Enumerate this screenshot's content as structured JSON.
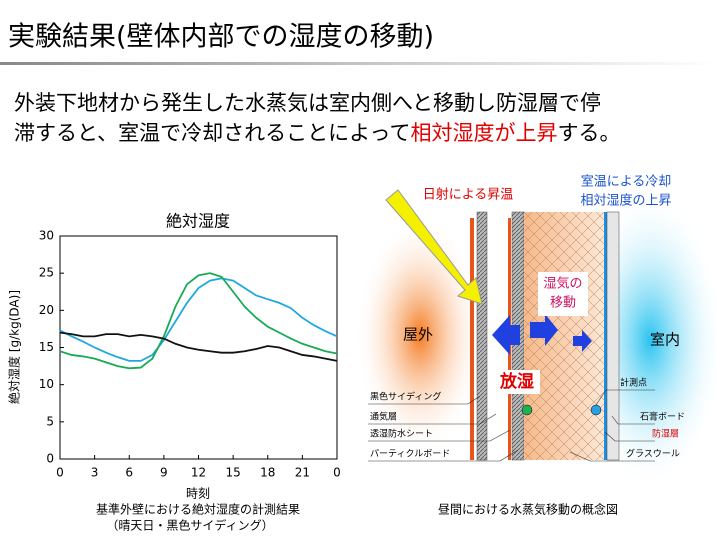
{
  "header": {
    "title": "実験結果(壁体内部での湿度の移動)"
  },
  "lead": {
    "text_1": "外装下地材から発生した水蒸気は室内側へと移動し防湿層で停",
    "text_2": "滞すると、室温で冷却されることによって",
    "highlight": "相対湿度が上昇",
    "text_3": "する。"
  },
  "chart_data": {
    "type": "line",
    "title": "絶対湿度",
    "y_label": "絶対湿度 [g/kg(DA)]",
    "x_label": "時刻",
    "caption": [
      "基準外壁における絶対湿度の計測結果",
      "（晴天日・黒色サイディング）"
    ],
    "x": [
      0,
      1,
      2,
      3,
      4,
      5,
      6,
      7,
      8,
      9,
      10,
      11,
      12,
      13,
      14,
      15,
      16,
      17,
      18,
      19,
      20,
      21,
      22,
      23,
      24
    ],
    "series": [
      {
        "color": "#1fa8e0",
        "values": [
          17.3,
          16.5,
          15.8,
          15,
          14.3,
          13.7,
          13.2,
          13.2,
          14,
          16,
          18.5,
          21,
          23,
          24,
          24.3,
          24,
          23,
          22,
          21.5,
          21,
          20.3,
          19,
          18,
          17.2,
          16.5
        ]
      },
      {
        "color": "#1aaa55",
        "values": [
          14.5,
          14,
          13.8,
          13.5,
          13,
          12.5,
          12.2,
          12.3,
          13.5,
          16.5,
          20.5,
          23.5,
          24.7,
          25,
          24.5,
          22.5,
          20.5,
          19,
          17.8,
          17,
          16.2,
          15.5,
          15,
          14.5,
          14.2
        ]
      },
      {
        "color": "#111111",
        "values": [
          17,
          16.8,
          16.5,
          16.5,
          16.8,
          16.8,
          16.5,
          16.7,
          16.5,
          16.2,
          15.5,
          15,
          14.7,
          14.5,
          14.3,
          14.3,
          14.5,
          14.8,
          15.2,
          15,
          14.5,
          14,
          13.8,
          13.5,
          13.2
        ]
      }
    ],
    "xlim": [
      0,
      24
    ],
    "xticks": [
      0,
      3,
      6,
      9,
      12,
      15,
      18,
      21,
      {
        "value": 24,
        "label": "0"
      }
    ],
    "ylim": [
      0,
      30
    ],
    "yticks": [
      0,
      5,
      10,
      15,
      20,
      25,
      30
    ]
  },
  "diagram": {
    "heat_label": "日射による昇温",
    "cool_label": [
      "室温による冷却",
      "相対湿度の上昇"
    ],
    "outside": "屋外",
    "inside": "室内",
    "moisture": [
      "湿気の",
      "移動"
    ],
    "release": "放湿",
    "layers": {
      "siding": "黒色サイディング",
      "air_gap": "通気層",
      "membrane": "透湿防水シート",
      "particle_board": "パーティクルボード",
      "point": "計測点",
      "gypsum": "石膏ボード",
      "vapor_barrier": "防湿層",
      "glass_wool": "グラスウール"
    },
    "caption": "昼間における水蒸気移動の概念図"
  }
}
